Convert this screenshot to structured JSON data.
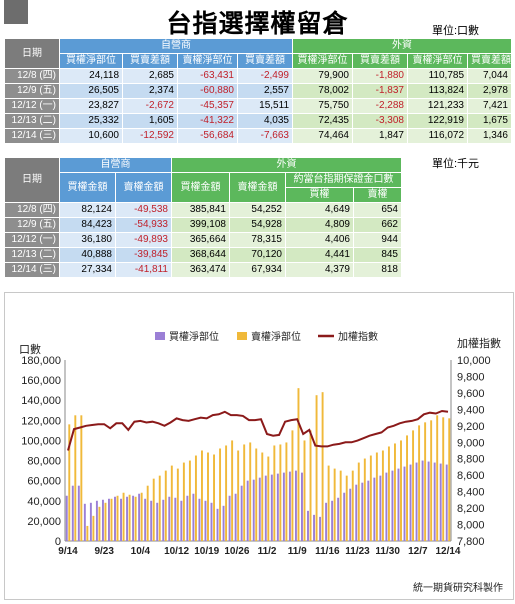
{
  "title": "台指選擇權留倉",
  "table1": {
    "unit": "單位:口數",
    "date_header": "日期",
    "group1": "自營商",
    "group2": "外資",
    "columns": [
      "買權淨部位",
      "買賣差額",
      "賣權淨部位",
      "買賣差額",
      "買權淨部位",
      "買賣差額",
      "賣權淨部位",
      "買賣差額"
    ],
    "rows": [
      {
        "date": "12/8 (四)",
        "v": [
          "24,118",
          "2,685",
          "-63,431",
          "-2,499",
          "79,900",
          "-1,880",
          "110,785",
          "7,044"
        ]
      },
      {
        "date": "12/9 (五)",
        "v": [
          "26,505",
          "2,374",
          "-60,880",
          "2,557",
          "78,002",
          "-1,837",
          "113,824",
          "2,978"
        ]
      },
      {
        "date": "12/12 (一)",
        "v": [
          "23,827",
          "-2,672",
          "-45,357",
          "15,511",
          "75,750",
          "-2,288",
          "121,233",
          "7,421"
        ]
      },
      {
        "date": "12/13 (二)",
        "v": [
          "25,332",
          "1,605",
          "-41,322",
          "4,035",
          "72,435",
          "-3,308",
          "122,919",
          "1,675"
        ]
      },
      {
        "date": "12/14 (三)",
        "v": [
          "10,600",
          "-12,592",
          "-56,684",
          "-7,663",
          "74,464",
          "1,847",
          "116,072",
          "1,346"
        ]
      }
    ]
  },
  "table2": {
    "unit": "單位:千元",
    "date_header": "日期",
    "group1": "自營商",
    "group2": "外資",
    "subgroup": "約當台指期保證金口數",
    "columns": [
      "買權金額",
      "賣權金額",
      "買權金額",
      "賣權金額",
      "買權",
      "賣權"
    ],
    "rows": [
      {
        "date": "12/8 (四)",
        "v": [
          "82,124",
          "-49,538",
          "385,841",
          "54,252",
          "4,649",
          "654"
        ]
      },
      {
        "date": "12/9 (五)",
        "v": [
          "84,423",
          "-54,933",
          "399,108",
          "54,928",
          "4,809",
          "662"
        ]
      },
      {
        "date": "12/12 (一)",
        "v": [
          "36,180",
          "-49,893",
          "365,664",
          "78,315",
          "4,406",
          "944"
        ]
      },
      {
        "date": "12/13 (二)",
        "v": [
          "40,888",
          "-39,845",
          "368,644",
          "70,120",
          "4,441",
          "845"
        ]
      },
      {
        "date": "12/14 (三)",
        "v": [
          "27,334",
          "-41,811",
          "363,474",
          "67,934",
          "4,379",
          "818"
        ]
      }
    ]
  },
  "chart_data": {
    "type": "bar",
    "left_axis_label": "口數",
    "right_axis_label": "加權指數",
    "ylim": [
      0,
      180000
    ],
    "y2lim": [
      7800,
      10000
    ],
    "y_ticks": [
      "0",
      "20,000",
      "40,000",
      "60,000",
      "80,000",
      "100,000",
      "120,000",
      "140,000",
      "160,000",
      "180,000"
    ],
    "y2_ticks": [
      "7,800",
      "8,000",
      "8,200",
      "8,400",
      "8,600",
      "8,800",
      "9,000",
      "9,200",
      "9,400",
      "9,600",
      "9,800",
      "10,000"
    ],
    "x_tick_labels": [
      "9/14",
      "9/23",
      "10/4",
      "10/12",
      "10/19",
      "10/26",
      "11/2",
      "11/9",
      "11/16",
      "11/23",
      "11/30",
      "12/7",
      "12/14"
    ],
    "x_tick_index": [
      0,
      6,
      12,
      18,
      23,
      28,
      33,
      38,
      43,
      48,
      53,
      58,
      63
    ],
    "legend_position": "top",
    "colors": {
      "call": "#9b7fd6",
      "put": "#f0b93a",
      "index": "#8b1a1a"
    },
    "series": [
      {
        "name": "買權淨部位",
        "values": [
          45000,
          55000,
          55000,
          37000,
          38000,
          40000,
          41000,
          42000,
          44000,
          42000,
          44000,
          45000,
          47000,
          42000,
          40000,
          38000,
          41000,
          44000,
          43000,
          40000,
          45000,
          47000,
          42000,
          40000,
          38000,
          32000,
          35000,
          45000,
          47000,
          55000,
          60000,
          61000,
          63000,
          65000,
          66000,
          67000,
          68000,
          69000,
          70000,
          68000,
          30000,
          26000,
          24000,
          38000,
          40000,
          43000,
          48000,
          52000,
          56000,
          58000,
          60000,
          63000,
          65000,
          68000,
          70000,
          72000,
          74000,
          76000,
          78000,
          80000,
          79000,
          78000,
          77000,
          76000
        ]
      },
      {
        "name": "賣權淨部位",
        "values": [
          116000,
          125000,
          125000,
          15000,
          25000,
          34000,
          38000,
          42000,
          45000,
          48000,
          46000,
          44000,
          48000,
          55000,
          62000,
          65000,
          70000,
          75000,
          72000,
          78000,
          80000,
          85000,
          90000,
          88000,
          86000,
          92000,
          95000,
          100000,
          90000,
          96000,
          98000,
          92000,
          88000,
          84000,
          95000,
          96000,
          98000,
          110000,
          152000,
          100000,
          110000,
          145000,
          148000,
          75000,
          72000,
          70000,
          65000,
          70000,
          78000,
          82000,
          85000,
          88000,
          90000,
          94000,
          97000,
          100000,
          105000,
          110000,
          115000,
          118000,
          120000,
          125000,
          123000,
          122000
        ]
      },
      {
        "name": "加權指數",
        "values": [
          8900,
          9160,
          9180,
          9200,
          9210,
          9220,
          9220,
          9170,
          9230,
          9230,
          9150,
          9250,
          9260,
          9240,
          9250,
          9230,
          9200,
          9240,
          9290,
          9270,
          9260,
          9280,
          9300,
          9290,
          9330,
          9340,
          9370,
          9330,
          9330,
          9320,
          9270,
          9270,
          9280,
          9100,
          9080,
          9090,
          9250,
          9270,
          9280,
          9100,
          9150,
          8960,
          8950,
          8950,
          8970,
          8980,
          9000,
          9000,
          9020,
          9050,
          9080,
          9100,
          9120,
          9180,
          9200,
          9230,
          9250,
          9260,
          9280,
          9340,
          9360,
          9350,
          9380,
          9370
        ]
      }
    ]
  },
  "footer": "統一期貨研究科製作"
}
